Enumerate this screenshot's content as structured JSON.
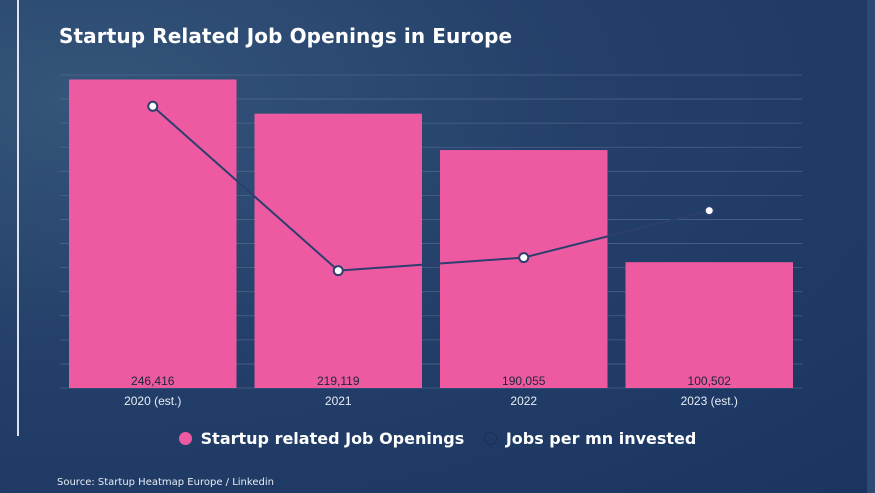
{
  "title": "Startup Related Job Openings in Europe",
  "source": "Source: Startup Heatmap Europe / Linkedin",
  "legend": {
    "bars_label": "Startup related Job Openings",
    "line_label": "Jobs per mn invested"
  },
  "colors": {
    "bar": "#ee5aa2",
    "line": "#2d3f6e",
    "grid": "#5a7094",
    "background": "#1d3860"
  },
  "chart_data": {
    "type": "bar",
    "categories": [
      "2020 (est.)",
      "2021",
      "2022",
      "2023 (est.)"
    ],
    "series": [
      {
        "name": "Startup related Job Openings",
        "type": "bar",
        "values": [
          246416,
          219119,
          190055,
          100502
        ],
        "value_labels": [
          "246,416",
          "219,119",
          "190,055",
          "100,502"
        ]
      },
      {
        "name": "Jobs per mn invested",
        "type": "line",
        "values": [
          10.8,
          4.5,
          5.0,
          6.8
        ],
        "ylim": [
          0,
          12
        ]
      }
    ],
    "ylim": [
      0,
      250000
    ],
    "grid": true,
    "legend_position": "bottom"
  }
}
